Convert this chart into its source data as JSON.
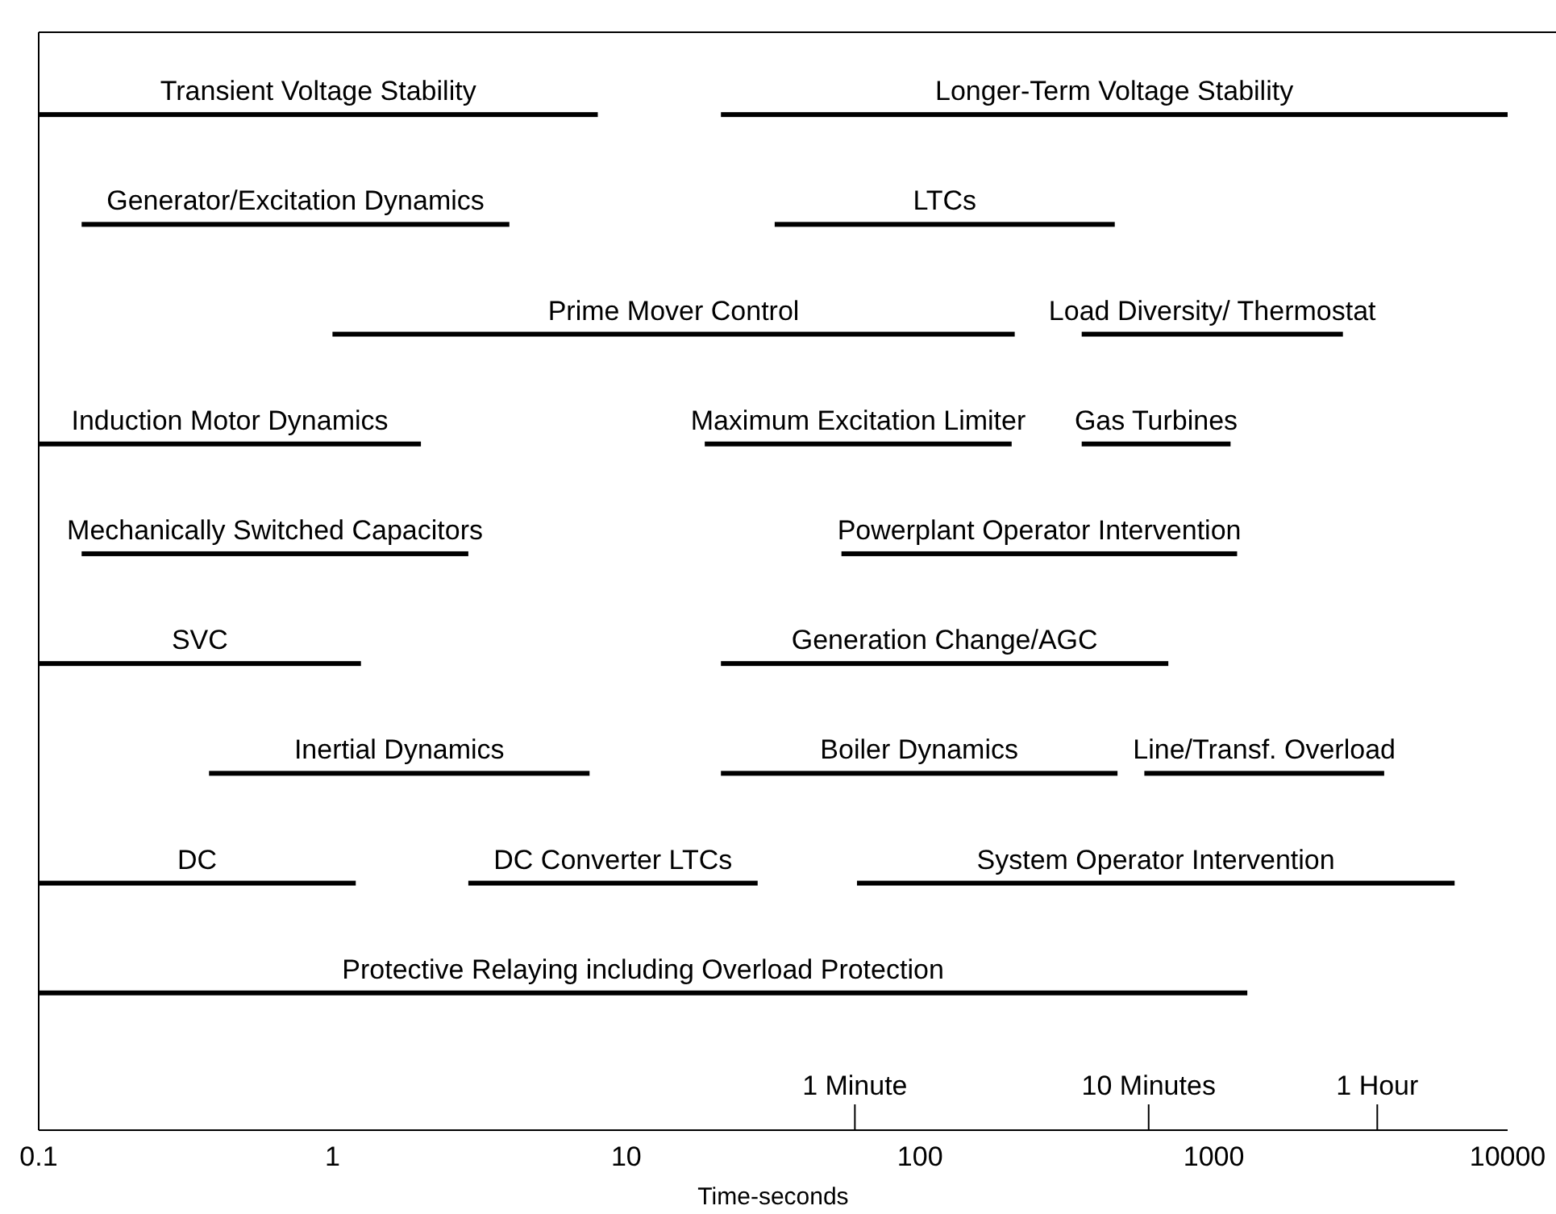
{
  "chart_data": {
    "type": "bar",
    "orientation": "horizontal",
    "log": "x",
    "xlabel": "Time-seconds",
    "xlim": [
      0.1,
      10000
    ],
    "xticks": [
      0.1,
      1,
      10,
      100,
      1000,
      10000
    ],
    "categories": [
      null,
      null,
      null,
      null,
      null,
      null,
      null,
      null,
      null,
      null
    ],
    "series": [
      {
        "color": "#000000",
        "base": [
          null,
          0.14,
          1,
          null,
          0.14,
          null,
          0.38,
          null,
          null,
          null
        ],
        "values": [
          8,
          3.86,
          209,
          2,
          2.76,
          1.25,
          7.12,
          1.2,
          1300,
          null
        ],
        "value_labels": [
          "Transient Voltage Stability",
          "Generator/Excitation Dynamics",
          "Prime Mover Control",
          "Induction Motor Dynamics",
          "Mechanically Switched Capacitors",
          "SVC",
          "Inertial Dynamics",
          "DC",
          "Protective Relaying including Overload Protection",
          null
        ]
      },
      {
        "color": "#000000",
        "base": [
          21,
          32,
          null,
          18.5,
          54,
          21,
          21,
          2.9,
          null,
          null
        ],
        "values": [
          9979,
          428,
          null,
          186.5,
          1146,
          679,
          449,
          25.1,
          null,
          null
        ],
        "value_labels": [
          "Longer-Term Voltage Stability",
          "LTCs",
          null,
          "Maximum Excitation Limiter",
          "Powerplant Operator Intervention",
          "Generation Change/AGC",
          "Boiler Dynamics",
          "DC Converter LTCs",
          null,
          null
        ]
      },
      {
        "color": "#000000",
        "base": [
          null,
          null,
          355,
          355,
          null,
          null,
          580,
          61,
          null,
          null
        ],
        "values": [
          null,
          null,
          2395,
          785,
          null,
          null,
          3220,
          6539,
          null,
          null
        ],
        "value_labels": [
          null,
          null,
          "Load Diversity/ Thermostat",
          "Gas Turbines",
          null,
          null,
          "Line/Transf. Overload",
          "System Operator Intervention",
          null,
          null
        ]
      }
    ],
    "ref_lines": [
      {
        "axis": "x",
        "value": 60,
        "label": "1 Minute"
      },
      {
        "axis": "x",
        "value": 600,
        "label": "10 Minutes"
      },
      {
        "axis": "x",
        "value": 3600,
        "label": "1 Hour"
      }
    ]
  }
}
